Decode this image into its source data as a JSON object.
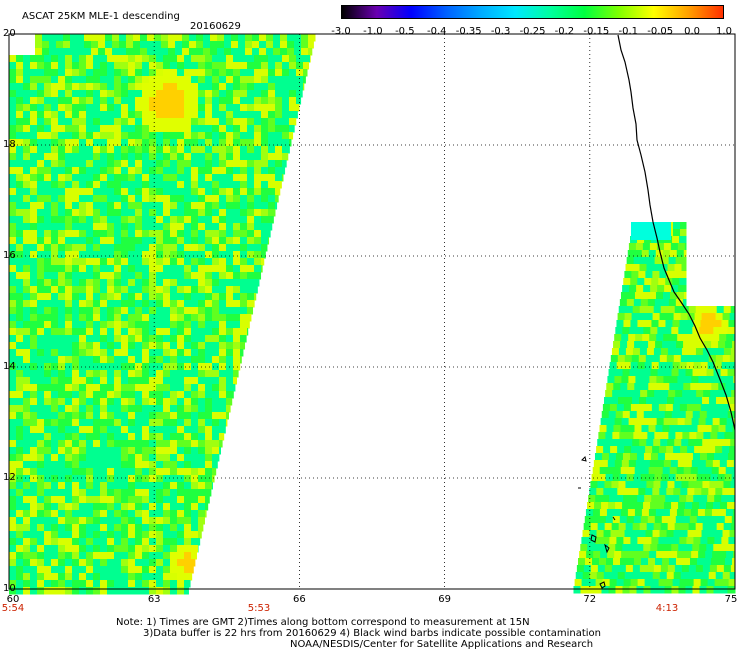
{
  "header": {
    "title": "ASCAT 25KM MLE-1 descending",
    "date": "20160629"
  },
  "colorbar": {
    "labels": [
      "-3.0",
      "-1.0",
      "-0.5",
      "-0.4",
      "-0.35",
      "-0.3",
      "-0.25",
      "-0.2",
      "-0.15",
      "-0.1",
      "-0.05",
      "0.0",
      "1.0"
    ],
    "colors": [
      "#000000",
      "#6a00b0",
      "#0000ff",
      "#0060ff",
      "#00aaff",
      "#00e8ff",
      "#00ffa0",
      "#00ff40",
      "#80ff00",
      "#ffff00",
      "#ffa000",
      "#ff3000"
    ]
  },
  "map": {
    "y_ticks": [
      "20",
      "18",
      "16",
      "14",
      "12",
      "10"
    ],
    "x_ticks": [
      "60",
      "63",
      "66",
      "69",
      "72",
      "75"
    ],
    "times": [
      "5:54",
      "5:53",
      "4:13"
    ],
    "lon_range": [
      60,
      75
    ],
    "lat_range": [
      10,
      20
    ]
  },
  "notes": {
    "line1": "Note: 1) Times are GMT 2)Times along bottom correspond to measurement at 15N",
    "line2": "3)Data buffer is 22 hrs from 20160629 4) Black wind barbs indicate possible contamination",
    "line3": "NOAA/NESDIS/Center for Satellite Applications and Research"
  }
}
